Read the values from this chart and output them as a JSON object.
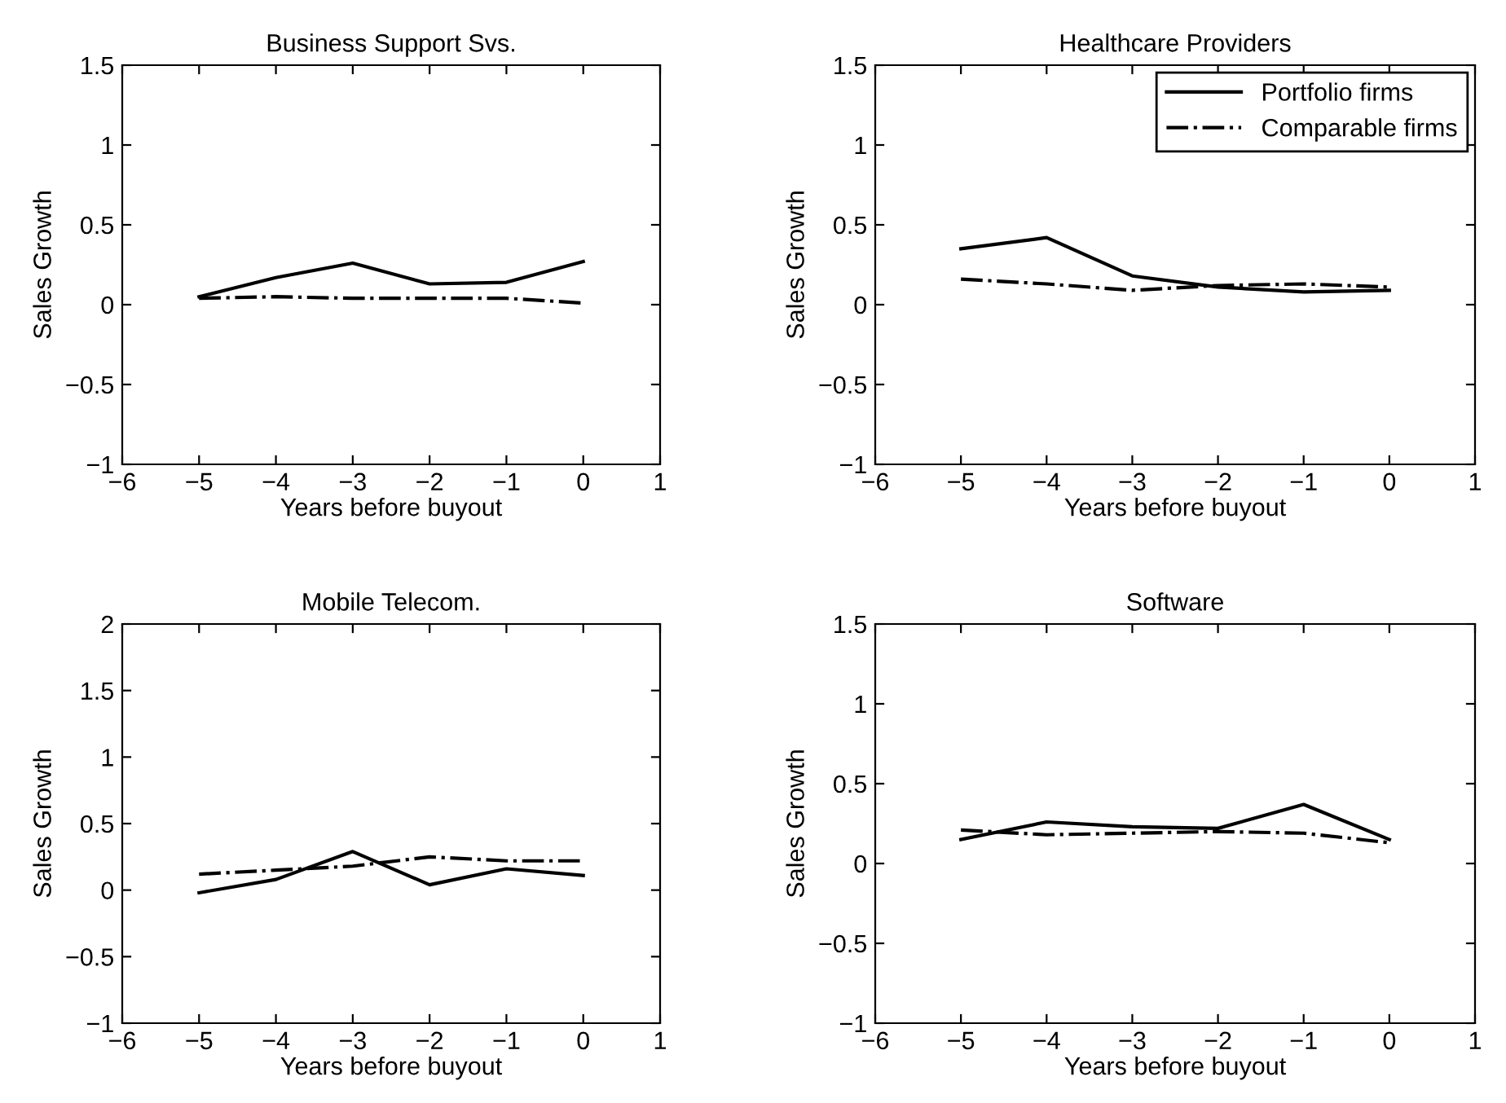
{
  "chart_data": [
    {
      "type": "line",
      "title": "Business Support Svs.",
      "xlabel": "Years before buyout",
      "ylabel": "Sales Growth",
      "xlim": [
        -6,
        1
      ],
      "xticks": [
        -6,
        -5,
        -4,
        -3,
        -2,
        -1,
        0,
        1
      ],
      "ylim": [
        -1,
        1.5
      ],
      "yticks": [
        -1,
        -0.5,
        0,
        0.5,
        1,
        1.5
      ],
      "x": [
        -5,
        -4,
        -3,
        -2,
        -1,
        0
      ],
      "series": [
        {
          "color": "#000000",
          "line_style": "solid",
          "values": [
            0.05,
            0.17,
            0.26,
            0.13,
            0.14,
            0.27
          ]
        },
        {
          "color": "#000000",
          "line_style": "dashdot",
          "values": [
            0.04,
            0.05,
            0.04,
            0.04,
            0.04,
            0.01
          ]
        }
      ]
    },
    {
      "type": "line",
      "title": "Healthcare Providers",
      "xlabel": "Years before buyout",
      "ylabel": "Sales Growth",
      "xlim": [
        -6,
        1
      ],
      "xticks": [
        -6,
        -5,
        -4,
        -3,
        -2,
        -1,
        0,
        1
      ],
      "ylim": [
        -1,
        1.5
      ],
      "yticks": [
        -1,
        -0.5,
        0,
        0.5,
        1,
        1.5
      ],
      "x": [
        -5,
        -4,
        -3,
        -2,
        -1,
        0
      ],
      "legend": "top right",
      "series": [
        {
          "name": "Portfolio firms",
          "color": "#000000",
          "line_style": "solid",
          "values": [
            0.35,
            0.42,
            0.18,
            0.11,
            0.08,
            0.09
          ]
        },
        {
          "name": "Comparable firms",
          "color": "#000000",
          "line_style": "dashdot",
          "values": [
            0.16,
            0.13,
            0.09,
            0.12,
            0.13,
            0.11
          ]
        }
      ]
    },
    {
      "type": "line",
      "title": "Mobile Telecom.",
      "xlabel": "Years before buyout",
      "ylabel": "Sales Growth",
      "xlim": [
        -6,
        1
      ],
      "xticks": [
        -6,
        -5,
        -4,
        -3,
        -2,
        -1,
        0,
        1
      ],
      "ylim": [
        -1,
        2
      ],
      "yticks": [
        -1,
        -0.5,
        0,
        0.5,
        1,
        1.5,
        2
      ],
      "x": [
        -5,
        -4,
        -3,
        -2,
        -1,
        0
      ],
      "series": [
        {
          "color": "#000000",
          "line_style": "solid",
          "values": [
            -0.02,
            0.08,
            0.29,
            0.04,
            0.16,
            0.11
          ]
        },
        {
          "color": "#000000",
          "line_style": "dashdot",
          "values": [
            0.12,
            0.15,
            0.18,
            0.25,
            0.22,
            0.22
          ]
        }
      ]
    },
    {
      "type": "line",
      "title": "Software",
      "xlabel": "Years before buyout",
      "ylabel": "Sales Growth",
      "xlim": [
        -6,
        1
      ],
      "xticks": [
        -6,
        -5,
        -4,
        -3,
        -2,
        -1,
        0,
        1
      ],
      "ylim": [
        -1,
        1.5
      ],
      "yticks": [
        -1,
        -0.5,
        0,
        0.5,
        1,
        1.5
      ],
      "x": [
        -5,
        -4,
        -3,
        -2,
        -1,
        0
      ],
      "series": [
        {
          "color": "#000000",
          "line_style": "solid",
          "values": [
            0.15,
            0.26,
            0.23,
            0.22,
            0.37,
            0.15
          ]
        },
        {
          "color": "#000000",
          "line_style": "dashdot",
          "values": [
            0.21,
            0.18,
            0.19,
            0.2,
            0.19,
            0.13
          ]
        }
      ]
    }
  ]
}
